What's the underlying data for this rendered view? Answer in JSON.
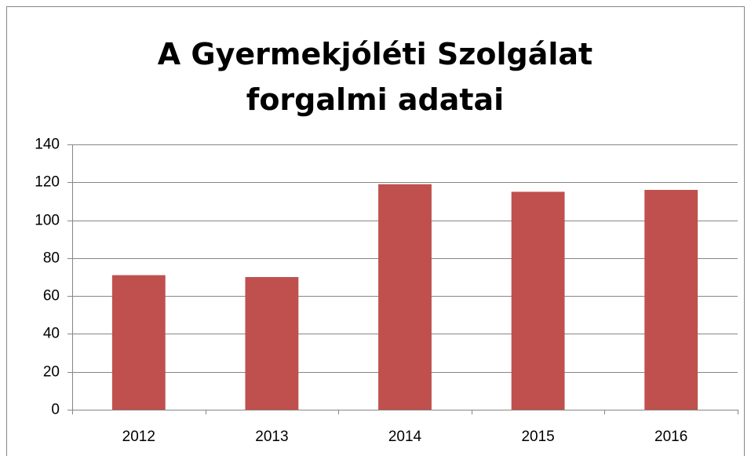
{
  "chart_data": {
    "type": "bar",
    "title": "A Gyermekjóléti Szolgálat forgalmi adatai",
    "categories": [
      "2012",
      "2013",
      "2014",
      "2015",
      "2016"
    ],
    "values": [
      71,
      70,
      119,
      115,
      116
    ],
    "color": "#c0504d",
    "ylim": [
      0,
      140
    ],
    "yticks": [
      0,
      20,
      40,
      60,
      80,
      100,
      120,
      140
    ],
    "grid": true
  }
}
